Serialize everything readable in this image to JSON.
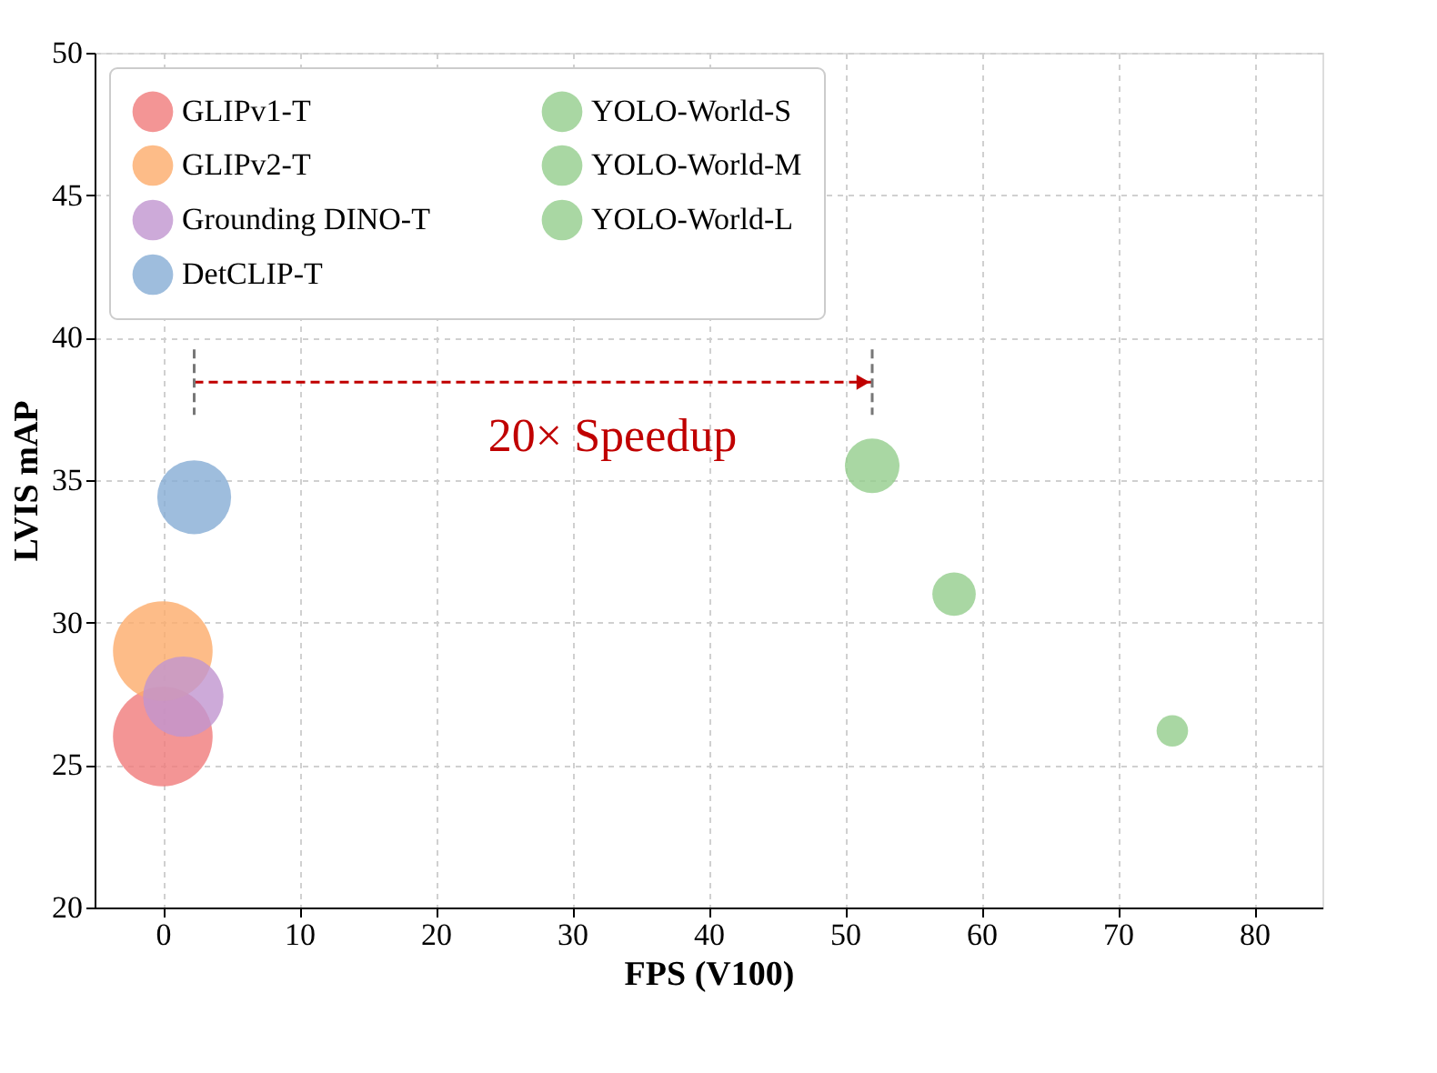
{
  "chart_data": {
    "type": "bubble",
    "xlabel": "FPS (V100)",
    "ylabel": "LVIS mAP",
    "xlim": [
      -5,
      85
    ],
    "xticks": [
      0,
      10,
      20,
      30,
      40,
      50,
      60,
      70,
      80
    ],
    "ylim": [
      20,
      50
    ],
    "yticks": [
      20,
      25,
      30,
      35,
      40,
      45,
      50
    ],
    "grid": true,
    "legend": "top",
    "series": [
      {
        "name": "GLIPv1-T",
        "color": "#f07a7a",
        "x": [
          0
        ],
        "values": [
          26.0
        ],
        "sizes": [
          1.0
        ]
      },
      {
        "name": "GLIPv2-T",
        "color": "#fdab6a",
        "x": [
          0
        ],
        "values": [
          29.0
        ],
        "sizes": [
          1.0
        ]
      },
      {
        "name": "Grounding DINO-T",
        "color": "#c195d0",
        "x": [
          1.5
        ],
        "values": [
          27.4
        ],
        "sizes": [
          0.65
        ]
      },
      {
        "name": "DetCLIP-T",
        "color": "#86acd4",
        "x": [
          2.3
        ],
        "values": [
          34.4
        ],
        "sizes": [
          0.55
        ]
      },
      {
        "name": "YOLO-World-S",
        "color": "#93cd8c",
        "x": [
          74
        ],
        "values": [
          26.2
        ],
        "sizes": [
          0.1
        ]
      },
      {
        "name": "YOLO-World-M",
        "color": "#93cd8c",
        "x": [
          58
        ],
        "values": [
          31.0
        ],
        "sizes": [
          0.19
        ]
      },
      {
        "name": "YOLO-World-L",
        "color": "#93cd8c",
        "x": [
          52
        ],
        "values": [
          35.5
        ],
        "sizes": [
          0.3
        ]
      }
    ],
    "annotations": [
      "20× Speedup"
    ]
  }
}
